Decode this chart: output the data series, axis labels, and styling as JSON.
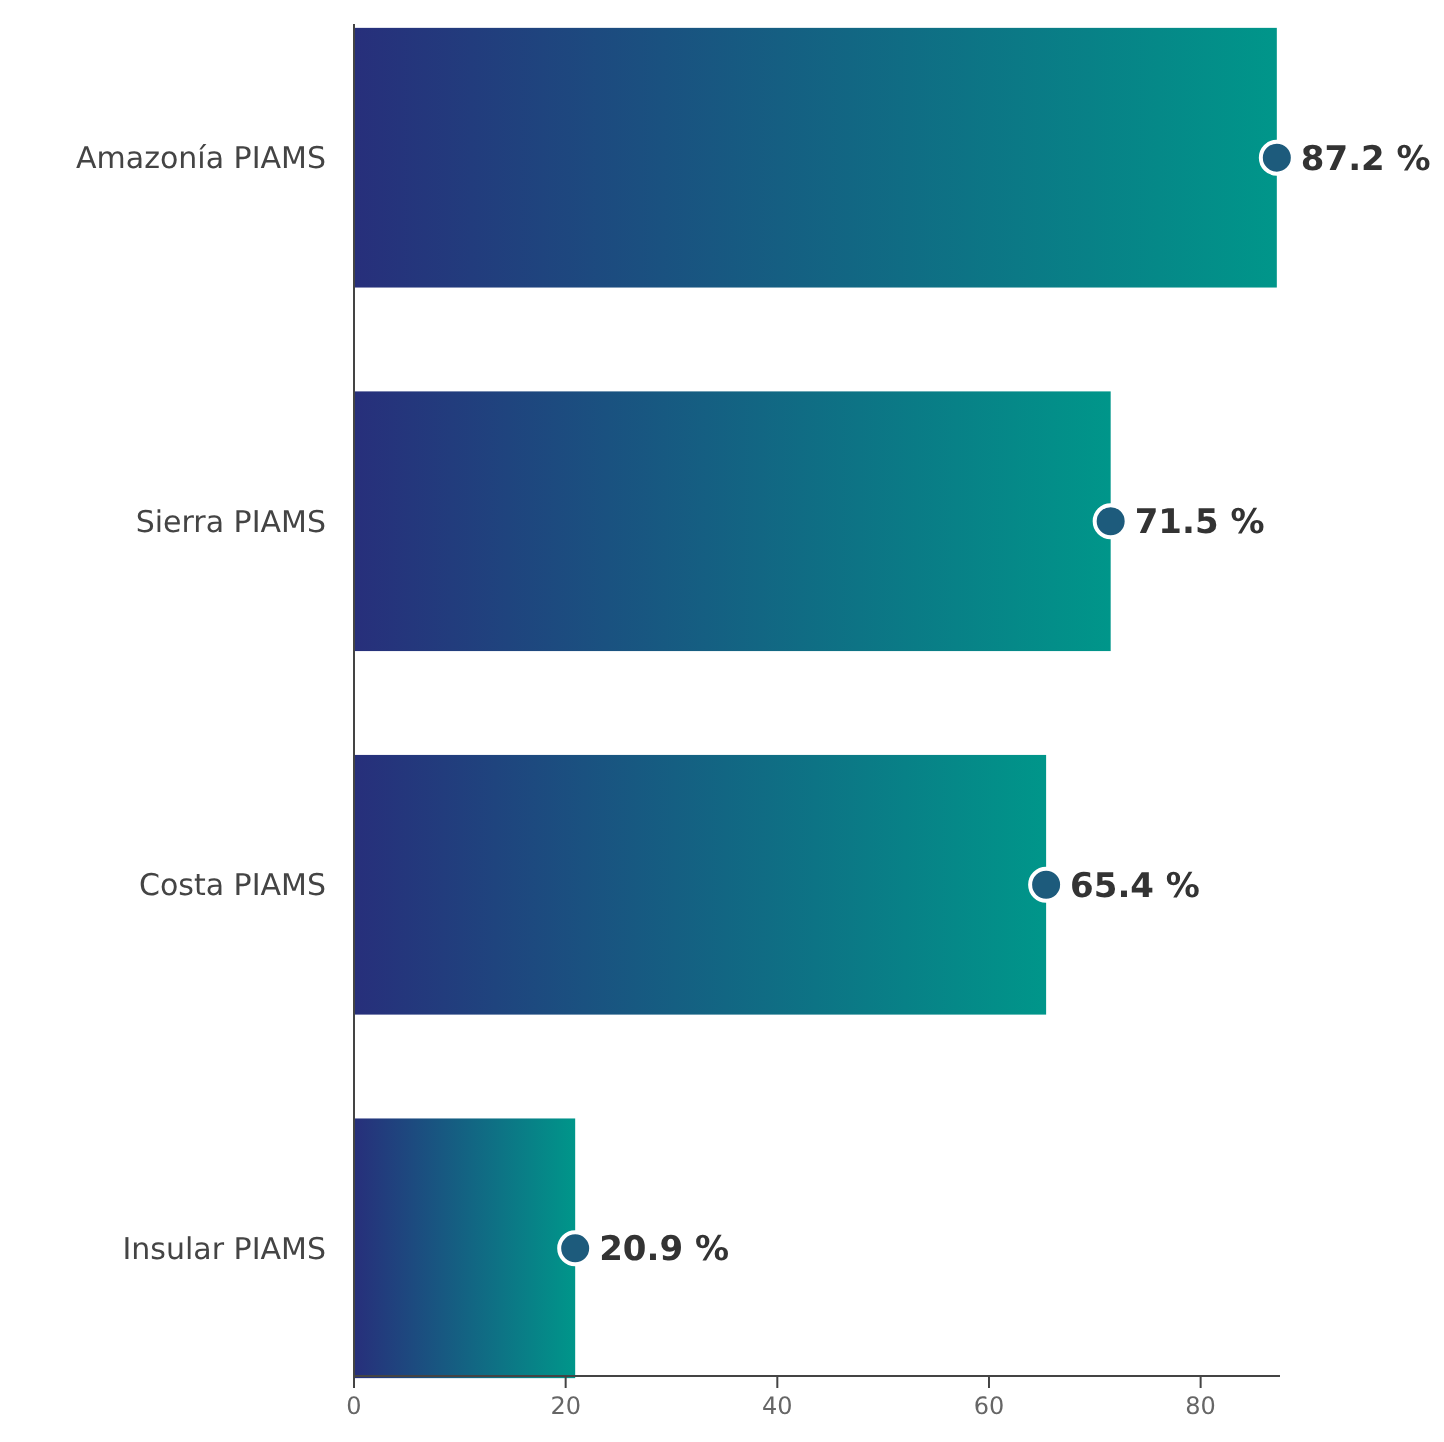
{
  "chart_data": {
    "type": "bar",
    "orientation": "horizontal",
    "categories": [
      "Amazonía PIAMS",
      "Sierra PIAMS",
      "Costa PIAMS",
      "Insular PIAMS"
    ],
    "series": [
      {
        "color": "#00968a",
        "values": [
          87.2,
          71.5,
          65.4,
          20.9
        ],
        "value_labels": [
          "87.2 %",
          "71.5 %",
          "65.4 %",
          "20.9 %"
        ]
      },
      {
        "type": "scatter",
        "color": "#1d5b7c",
        "x": [
          "Amazonía PIAMS",
          "Sierra PIAMS",
          "Costa PIAMS",
          "Insular PIAMS"
        ],
        "values": [
          87.2,
          71.5,
          65.4,
          20.9
        ]
      }
    ],
    "xlim": [
      0,
      87.5
    ],
    "xticks": [
      0,
      20,
      40,
      60,
      80
    ],
    "marker": "circle",
    "grid": false
  }
}
